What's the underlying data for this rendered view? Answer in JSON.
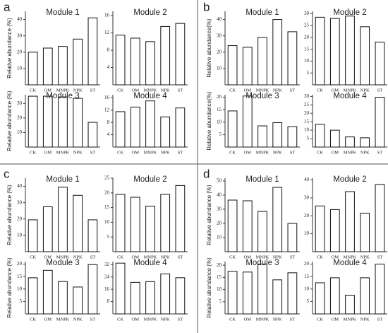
{
  "panel_labels": [
    "a",
    "b",
    "c",
    "d"
  ],
  "chart_data": [
    {
      "type": "bar",
      "title": "Module 1",
      "y_label": "Relative abundance (%)",
      "categories": [
        "CK",
        "OM",
        "MNPK",
        "NPK",
        "ST"
      ],
      "values": [
        20,
        22.5,
        23.5,
        28,
        41
      ],
      "color": "#ffffff",
      "ylim": [
        0,
        45
      ],
      "yticks": [
        10,
        20,
        30,
        40
      ]
    },
    {
      "type": "bar",
      "title": "Module 2",
      "categories": [
        "CK",
        "OM",
        "MNPK",
        "NPK",
        "ST"
      ],
      "values": [
        11.5,
        10.8,
        10,
        13.5,
        14.2
      ],
      "color": "#ffffff",
      "ylim": [
        0,
        17
      ],
      "yticks": [
        4,
        8,
        12,
        16
      ]
    },
    {
      "type": "bar",
      "title": "Module 3",
      "y_label": "Relative abundance (%)",
      "categories": [
        "CK",
        "OM",
        "MNPK",
        "NPK",
        "ST"
      ],
      "values": [
        35,
        35,
        34.5,
        33.5,
        17
      ],
      "color": "#ffffff",
      "ylim": [
        0,
        36
      ],
      "yticks": [
        10,
        20,
        30
      ]
    },
    {
      "type": "bar",
      "title": "Module 4",
      "categories": [
        "CK",
        "OM",
        "MNPK",
        "NPK",
        "ST"
      ],
      "values": [
        11.5,
        13,
        15,
        9.8,
        12.7
      ],
      "color": "#ffffff",
      "ylim": [
        0,
        17
      ],
      "yticks": [
        4,
        8,
        12,
        16
      ]
    },
    {
      "type": "bar",
      "title": "Module 1",
      "y_label": "Relative abundance(%)",
      "categories": [
        "CK",
        "OM",
        "MNPK",
        "NPK",
        "ST"
      ],
      "values": [
        24,
        23,
        29,
        40,
        32.5
      ],
      "color": "#ffffff",
      "ylim": [
        0,
        45
      ],
      "yticks": [
        10,
        20,
        30,
        40
      ]
    },
    {
      "type": "bar",
      "title": "Module 2",
      "categories": [
        "CK",
        "OM",
        "MNPK",
        "NPK",
        "ST"
      ],
      "values": [
        28.5,
        28,
        29,
        24.5,
        18
      ],
      "color": "#ffffff",
      "ylim": [
        0,
        31
      ],
      "yticks": [
        5,
        10,
        15,
        20,
        25,
        30
      ]
    },
    {
      "type": "bar",
      "title": "Module 3",
      "y_label": "Relative abundance(%)",
      "categories": [
        "CK",
        "OM",
        "MNPK",
        "NPK",
        "ST"
      ],
      "values": [
        14.5,
        20.5,
        8.5,
        9.8,
        8.2
      ],
      "color": "#ffffff",
      "ylim": [
        0,
        21
      ],
      "yticks": [
        5,
        10,
        15,
        20
      ]
    },
    {
      "type": "bar",
      "title": "Module 4",
      "categories": [
        "CK",
        "OM",
        "MNPK",
        "NPK",
        "ST"
      ],
      "values": [
        13.5,
        10,
        6,
        5.5,
        29.5
      ],
      "color": "#ffffff",
      "ylim": [
        0,
        31
      ],
      "yticks": [
        5,
        10,
        15,
        20,
        25,
        30
      ]
    },
    {
      "type": "bar",
      "title": "Module 1",
      "y_label": "Relative abundance (%)",
      "categories": [
        "CK",
        "OM",
        "MNPK",
        "NPK",
        "ST"
      ],
      "values": [
        19.5,
        27.5,
        39.5,
        34.5,
        19.5
      ],
      "color": "#ffffff",
      "ylim": [
        0,
        45
      ],
      "yticks": [
        10,
        20,
        30,
        40
      ]
    },
    {
      "type": "bar",
      "title": "Module 2",
      "categories": [
        "CK",
        "OM",
        "MNPK",
        "NPK",
        "ST"
      ],
      "values": [
        19.5,
        18.5,
        15.5,
        19.5,
        22.5
      ],
      "color": "#ffffff",
      "ylim": [
        0,
        25
      ],
      "yticks": [
        5,
        10,
        15,
        20,
        25
      ]
    },
    {
      "type": "bar",
      "title": "Module 3",
      "y_label": "Relative abundance (%)",
      "categories": [
        "CK",
        "OM",
        "MNPK",
        "NPK",
        "ST"
      ],
      "values": [
        14.5,
        17.5,
        13,
        10.8,
        19.8
      ],
      "color": "#ffffff",
      "ylim": [
        0,
        21
      ],
      "yticks": [
        5,
        10,
        15,
        20
      ]
    },
    {
      "type": "bar",
      "title": "Module 4",
      "categories": [
        "CK",
        "OM",
        "MNPK",
        "NPK",
        "ST"
      ],
      "values": [
        33,
        20.5,
        21,
        26,
        23.5
      ],
      "color": "#ffffff",
      "ylim": [
        0,
        34
      ],
      "yticks": [
        8,
        16,
        24,
        32
      ]
    },
    {
      "type": "bar",
      "title": "Module 1",
      "y_label": "Relative abundance (%)",
      "categories": [
        "CK",
        "OM",
        "MNPK",
        "NPK",
        "ST"
      ],
      "values": [
        36.5,
        36,
        28.5,
        45.5,
        20
      ],
      "color": "#ffffff",
      "ylim": [
        0,
        52
      ],
      "yticks": [
        10,
        20,
        30,
        40,
        50
      ]
    },
    {
      "type": "bar",
      "title": "Module 2",
      "categories": [
        "CK",
        "OM",
        "MNPK",
        "NPK",
        "ST"
      ],
      "values": [
        25.5,
        23.5,
        33.5,
        21.5,
        37.5
      ],
      "color": "#ffffff",
      "ylim": [
        0,
        41
      ],
      "yticks": [
        10,
        20,
        30,
        40
      ]
    },
    {
      "type": "bar",
      "title": "Module 3",
      "y_label": "Relative abundance (%)",
      "categories": [
        "CK",
        "OM",
        "MNPK",
        "NPK",
        "ST"
      ],
      "values": [
        17.5,
        17.2,
        20.5,
        14,
        16.9
      ],
      "color": "#ffffff",
      "ylim": [
        0,
        21.5
      ],
      "yticks": [
        5,
        10,
        15,
        20
      ]
    },
    {
      "type": "bar",
      "title": "Module 4",
      "categories": [
        "CK",
        "OM",
        "MNPK",
        "NPK",
        "ST"
      ],
      "values": [
        12.5,
        14.5,
        7.5,
        14.5,
        20
      ],
      "color": "#ffffff",
      "ylim": [
        0,
        21
      ],
      "yticks": [
        5,
        10,
        15,
        20
      ]
    }
  ]
}
